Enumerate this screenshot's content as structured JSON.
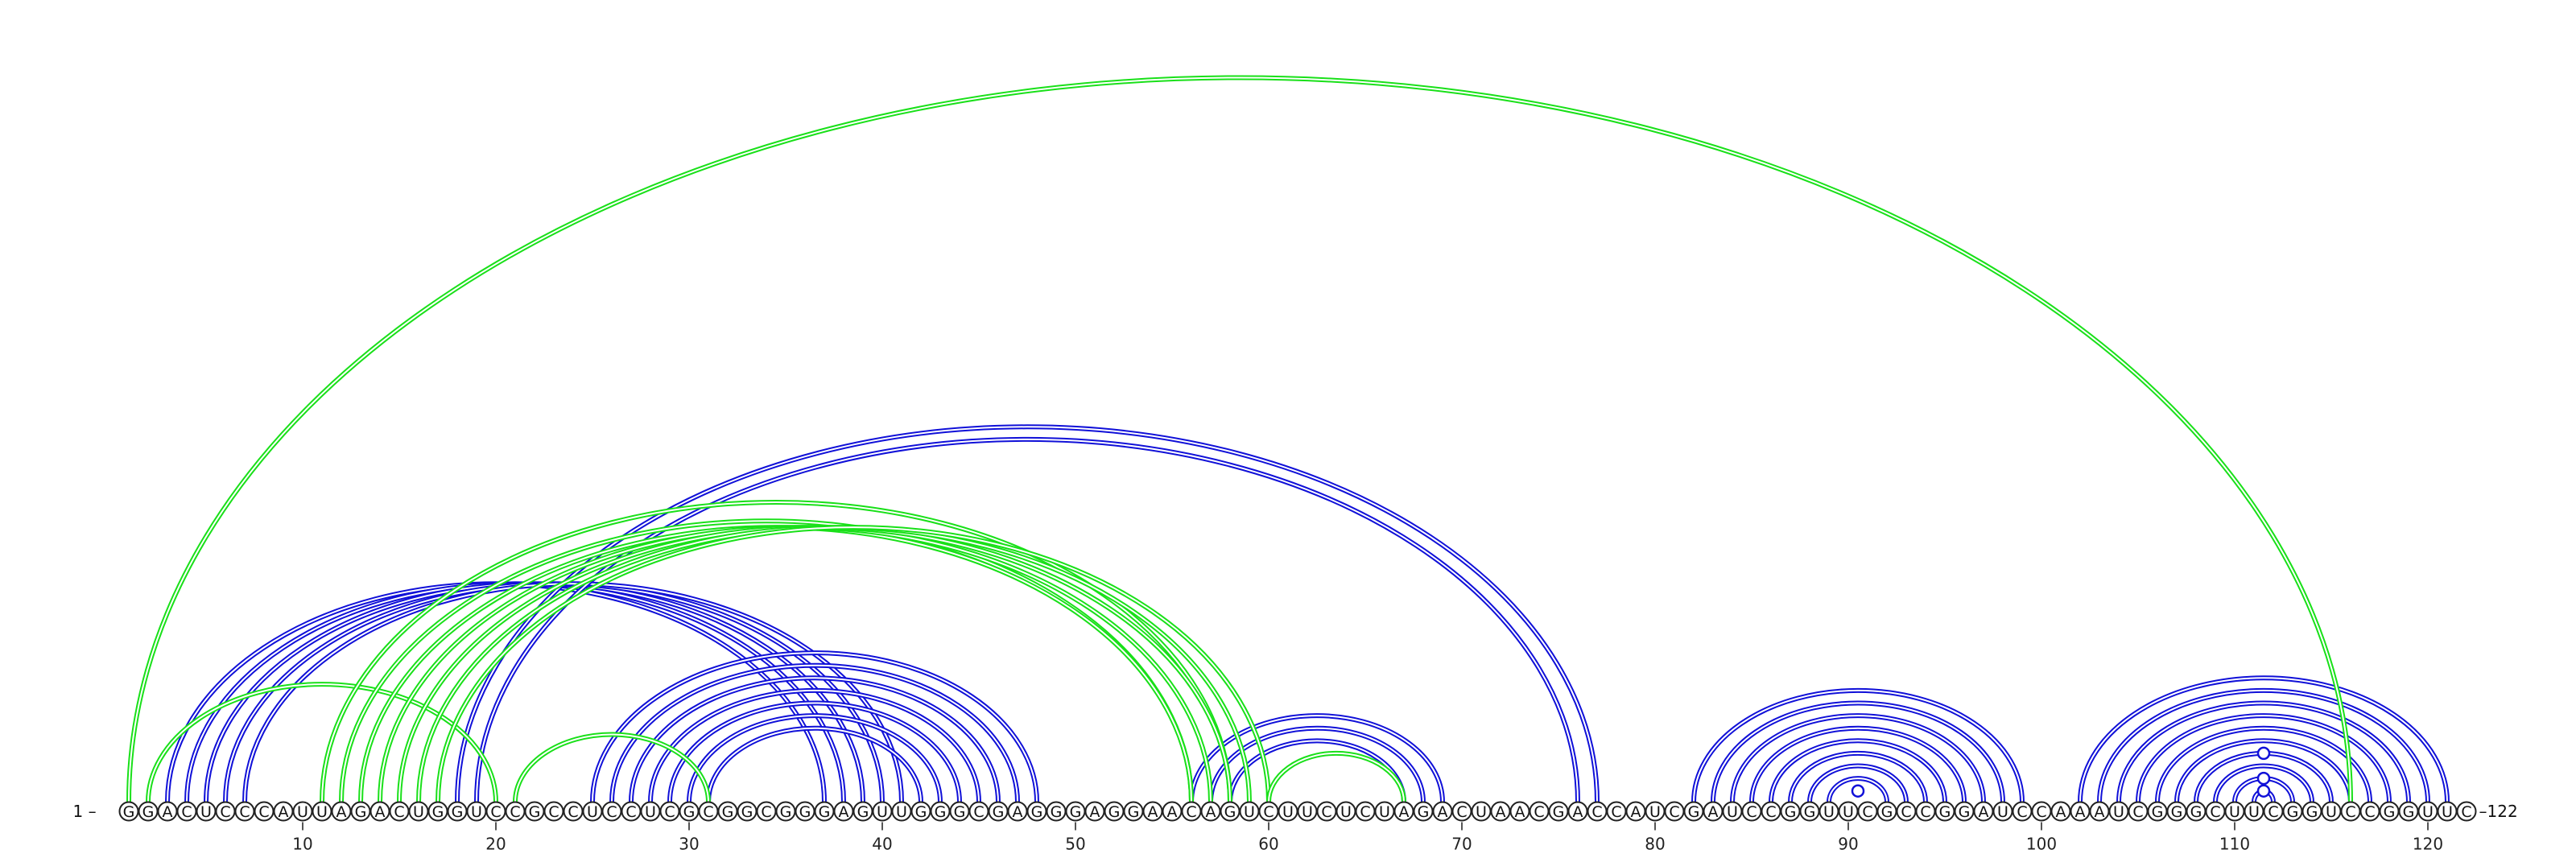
{
  "sequence": "GGACUCCCAUUAGACUGGUCCGCCUCCUCGCGGCGGGAGUUGGGCGAGGGAGGAACAGUCUUCUCUAGACUAACGACCAUCGAUCCGGUUCGCCGGAUCCAAAUCGGGCUUCGGUCCGGUUC",
  "start_label": "1 –",
  "end_label": "–122",
  "ticks": [
    "10",
    "20",
    "30",
    "40",
    "50",
    "60",
    "70",
    "80",
    "90",
    "100",
    "110",
    "120"
  ],
  "tick_positions": [
    10,
    20,
    30,
    40,
    50,
    60,
    70,
    80,
    90,
    100,
    110,
    120
  ],
  "colors": {
    "blue": "#1010d8",
    "green": "#19e019",
    "circle_stroke": "#222222"
  },
  "blue_pairs": [
    [
      3,
      37
    ],
    [
      4,
      38
    ],
    [
      5,
      39
    ],
    [
      6,
      40
    ],
    [
      7,
      41
    ],
    [
      18,
      77
    ],
    [
      19,
      76
    ],
    [
      25,
      48
    ],
    [
      26,
      47
    ],
    [
      27,
      46
    ],
    [
      28,
      45
    ],
    [
      29,
      44
    ],
    [
      30,
      43
    ],
    [
      31,
      42
    ],
    [
      56,
      69
    ],
    [
      57,
      68
    ],
    [
      58,
      67
    ],
    [
      82,
      99
    ],
    [
      83,
      98
    ],
    [
      84,
      97
    ],
    [
      85,
      96
    ],
    [
      86,
      95
    ],
    [
      87,
      94
    ],
    [
      88,
      93
    ],
    [
      89,
      92
    ],
    [
      102,
      121
    ],
    [
      103,
      120
    ],
    [
      104,
      119
    ],
    [
      105,
      118
    ],
    [
      106,
      117
    ],
    [
      107,
      116
    ],
    [
      108,
      115
    ],
    [
      109,
      114
    ],
    [
      110,
      113
    ],
    [
      111,
      112
    ]
  ],
  "green_pairs": [
    [
      1,
      116
    ],
    [
      2,
      20
    ],
    [
      11,
      58
    ],
    [
      12,
      56
    ],
    [
      13,
      56
    ],
    [
      14,
      57
    ],
    [
      15,
      58
    ],
    [
      16,
      59
    ],
    [
      17,
      60
    ],
    [
      21,
      31
    ],
    [
      60,
      67
    ]
  ],
  "markers": [
    {
      "pair_index": 25,
      "note": "loop marker"
    },
    {
      "pair": [
        111,
        112
      ],
      "level": 1
    },
    {
      "pair": [
        110,
        113
      ],
      "level": 2
    },
    {
      "pair": [
        108,
        115
      ],
      "level": 3
    }
  ]
}
